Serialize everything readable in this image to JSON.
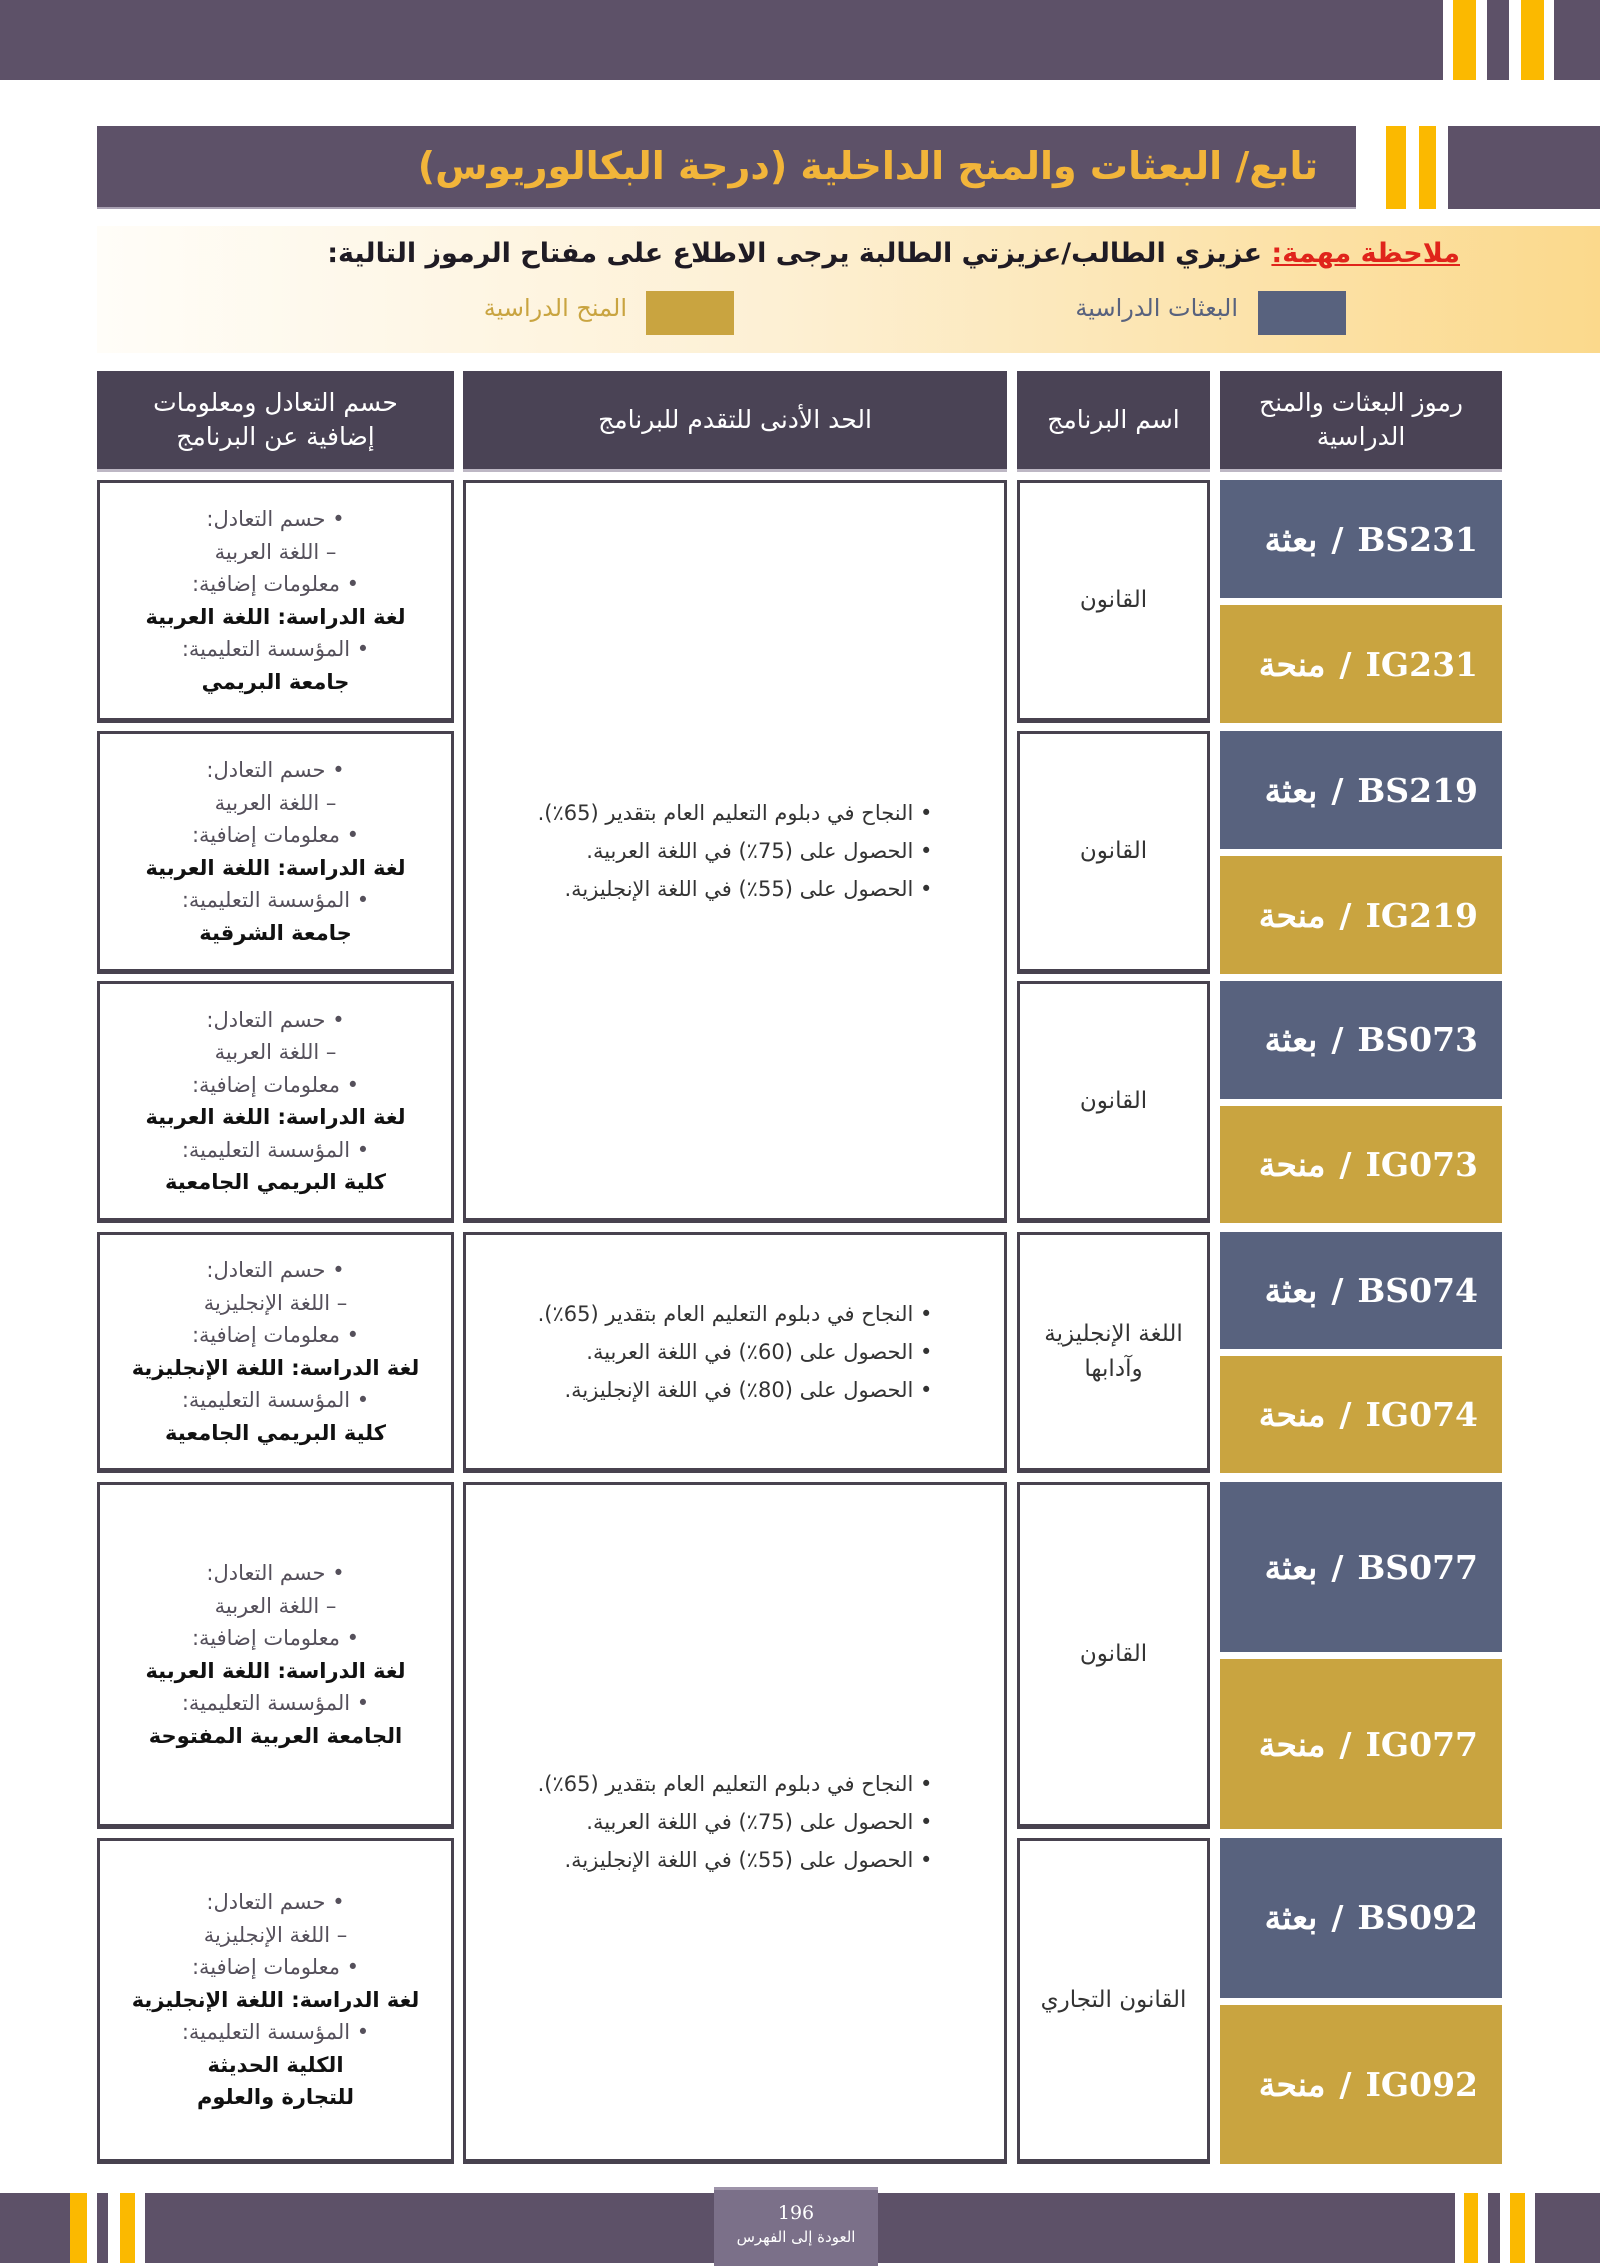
{
  "header": {
    "title": "تابع/ البعثات والمنح الداخلية (درجة البكالوريوس)"
  },
  "note": {
    "label": "ملاحظة مهمة:",
    "text": " عزيزي الطالب/عزيزتي الطالبة يرجى الاطلاع على مفتاح الرموز التالية:",
    "legend": [
      {
        "label": "البعثات الدراسية",
        "color": "#58627e"
      },
      {
        "label": "المنح الدراسية",
        "color": "#c9a440"
      }
    ]
  },
  "table": {
    "columns": {
      "codes": "رموز البعثات والمنح الدراسية",
      "program": "اسم البرنامج",
      "requirements": "الحد الأدنى للتقدم للبرنامج",
      "info": "حسم التعادل ومعلومات إضافية عن البرنامج"
    },
    "labels": {
      "bs_word": "بعثة",
      "ig_word": "منحة",
      "equivalency": "حسم التعادل:",
      "additional": "معلومات إضافية:",
      "institution": "المؤسسة التعليمية:"
    },
    "rows": [
      {
        "bs": "BS231",
        "ig": "IG231",
        "program": "القانون",
        "equivalency": "– اللغة العربية",
        "study_language": "لغة الدراسة: اللغة العربية",
        "institution": [
          "جامعة البريمي"
        ]
      },
      {
        "bs": "BS219",
        "ig": "IG219",
        "program": "القانون",
        "equivalency": "– اللغة العربية",
        "study_language": "لغة الدراسة: اللغة العربية",
        "institution": [
          "جامعة الشرقية"
        ]
      },
      {
        "bs": "BS073",
        "ig": "IG073",
        "program": "القانون",
        "equivalency": "– اللغة العربية",
        "study_language": "لغة الدراسة: اللغة العربية",
        "institution": [
          "كلية البريمي الجامعية"
        ]
      },
      {
        "bs": "BS074",
        "ig": "IG074",
        "program": "اللغة الإنجليزية وآدابها",
        "equivalency": "– اللغة الإنجليزية",
        "study_language": "لغة الدراسة: اللغة الإنجليزية",
        "institution": [
          "كلية البريمي الجامعية"
        ]
      },
      {
        "bs": "BS077",
        "ig": "IG077",
        "program": "القانون",
        "equivalency": "– اللغة العربية",
        "study_language": "لغة الدراسة: اللغة العربية",
        "institution": [
          "الجامعة العربية المفتوحة"
        ]
      },
      {
        "bs": "BS092",
        "ig": "IG092",
        "program": "القانون التجاري",
        "equivalency": "– اللغة الإنجليزية",
        "study_language": "لغة الدراسة: اللغة الإنجليزية",
        "institution": [
          "الكلية الحديثة",
          "للتجارة والعلوم"
        ]
      }
    ],
    "requirement_groups": [
      {
        "items": [
          "النجاح في دبلوم التعليم العام بتقدير (65٪).",
          "الحصول على (75٪) في اللغة العربية.",
          "الحصول على (55٪) في اللغة الإنجليزية."
        ]
      },
      {
        "items": [
          "النجاح في دبلوم التعليم العام بتقدير (65٪).",
          "الحصول على (60٪) في اللغة العربية.",
          "الحصول على (80٪) في اللغة الإنجليزية."
        ]
      },
      {
        "items": [
          "النجاح في دبلوم التعليم العام بتقدير (65٪).",
          "الحصول على (75٪) في اللغة العربية.",
          "الحصول على (55٪) في اللغة الإنجليزية."
        ]
      }
    ]
  },
  "footer": {
    "page_number": "196",
    "back_link": "العودة إلى الفهرس"
  }
}
